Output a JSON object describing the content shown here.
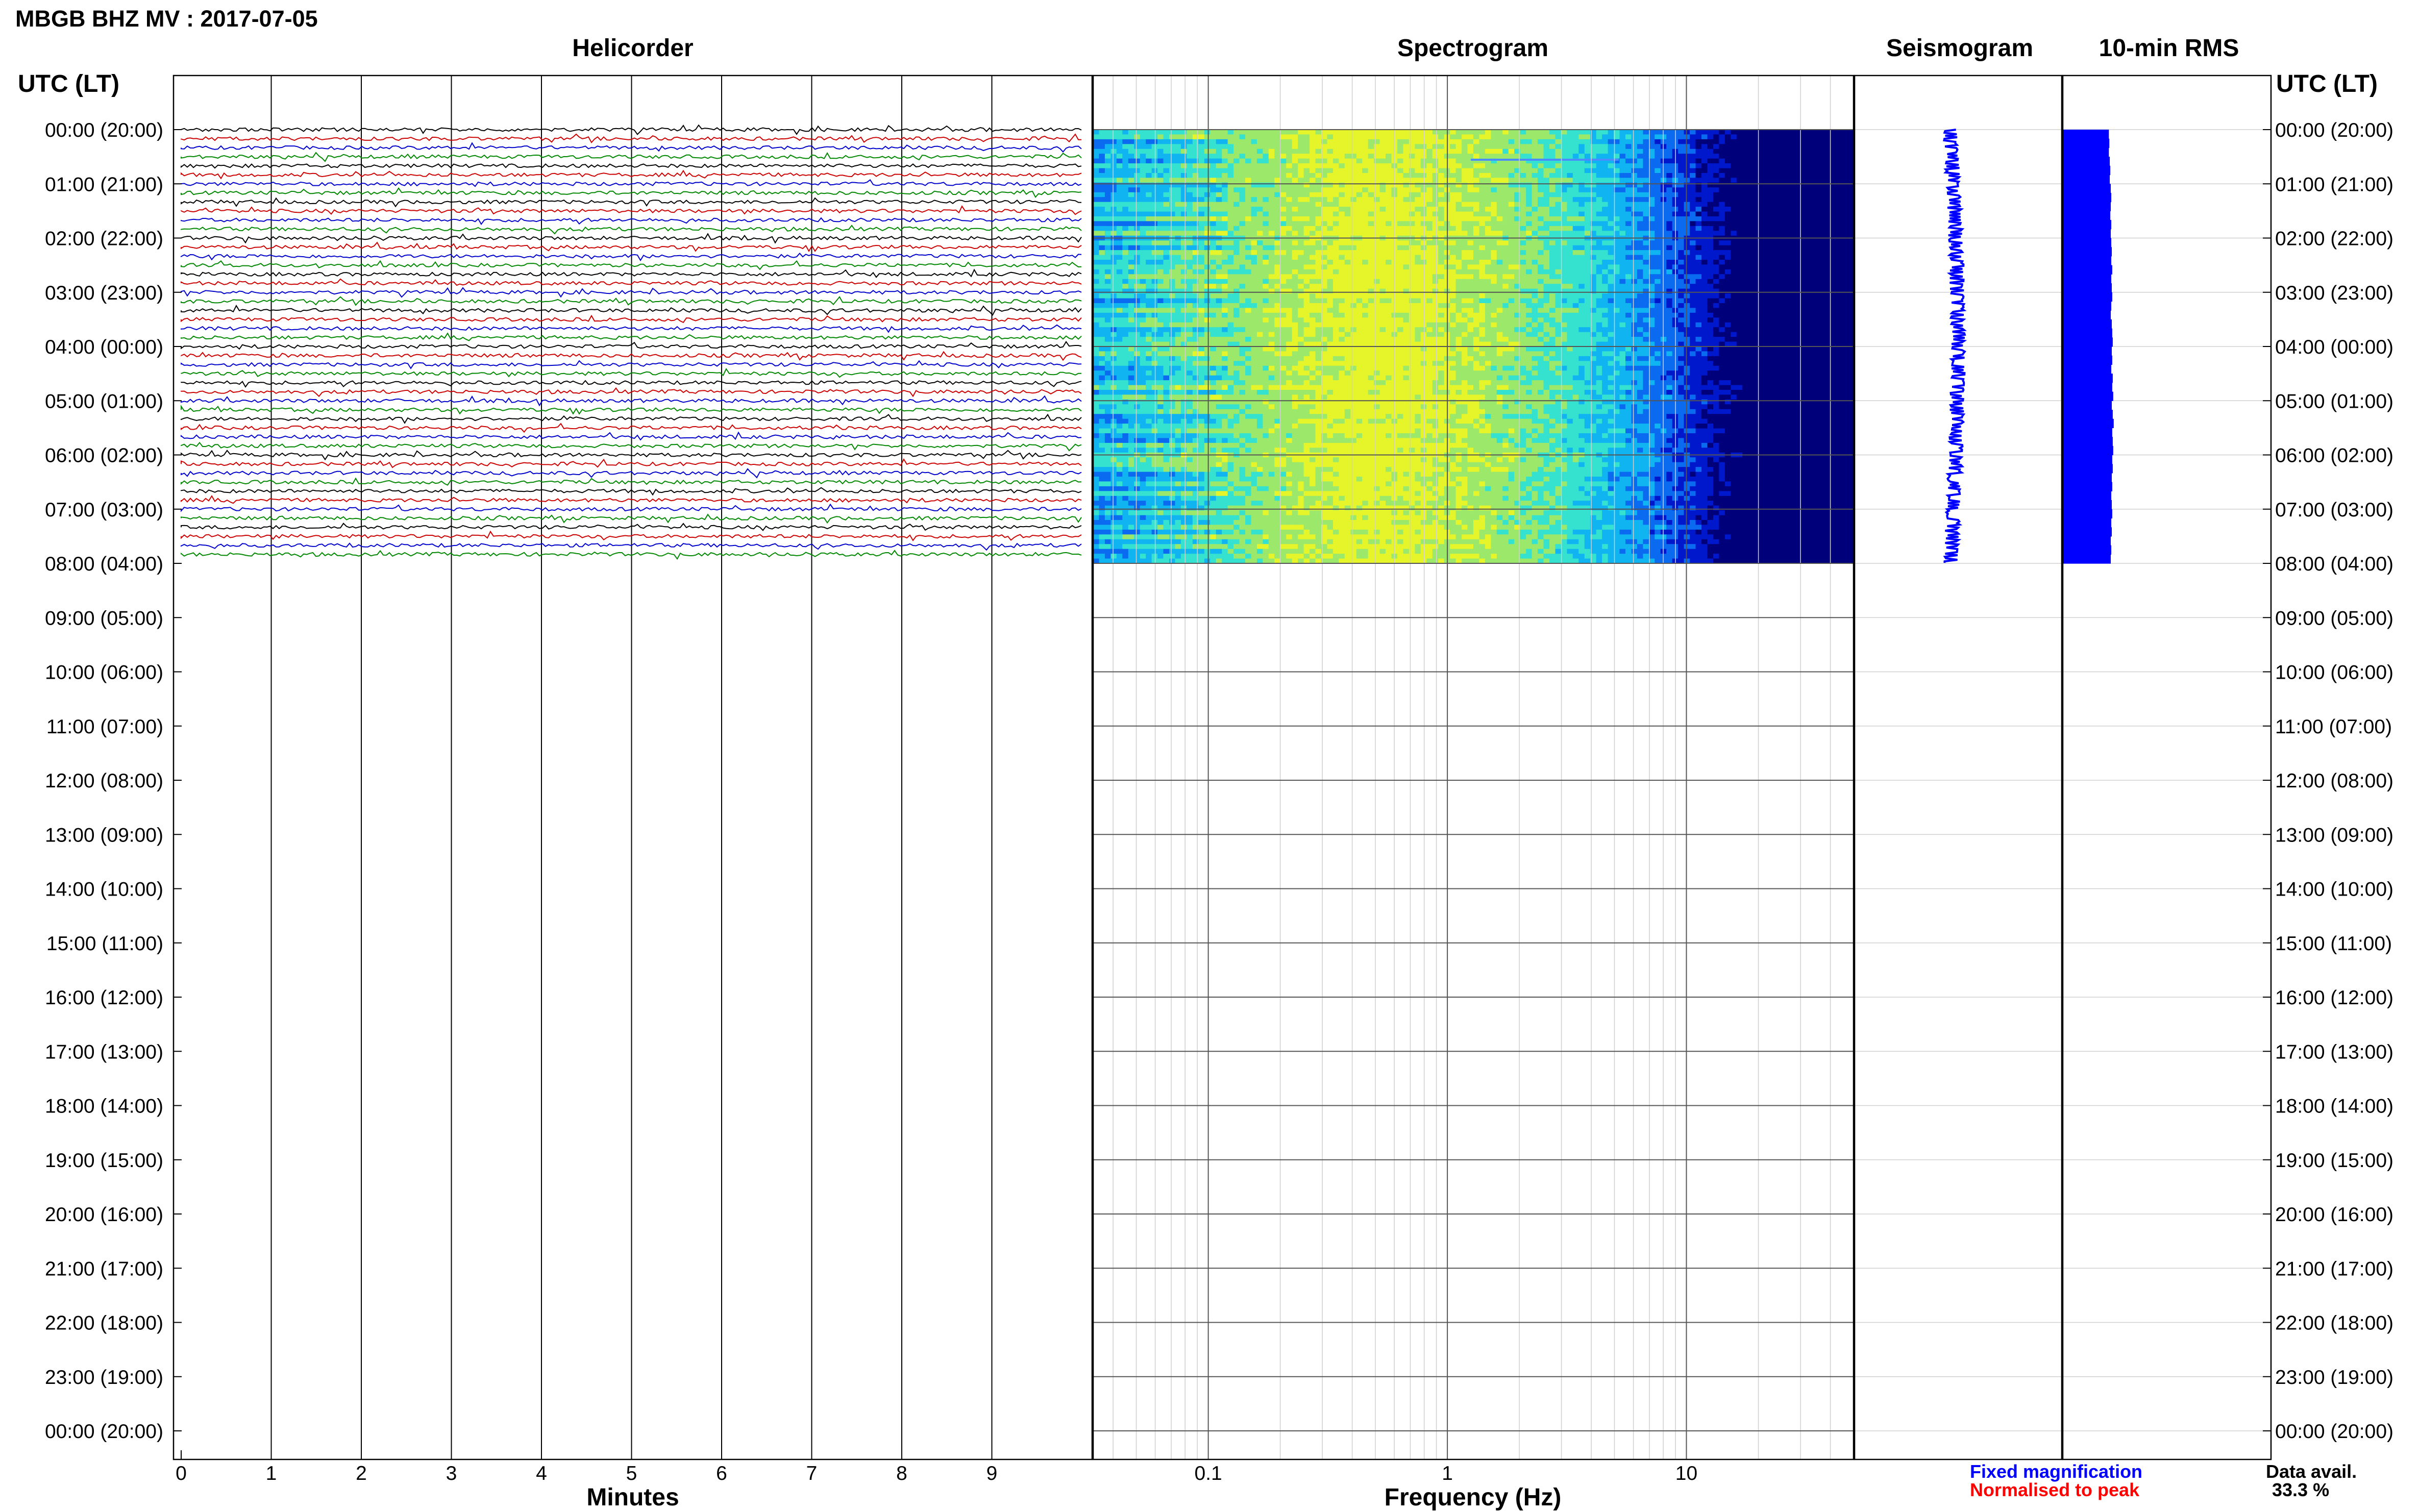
{
  "title": "MBGB BHZ MV : 2017-07-05",
  "utc_label": "UTC (LT)",
  "panels": {
    "helicorder": "Helicorder",
    "spectrogram": "Spectrogram",
    "seismogram": "Seismogram",
    "rms": "10-min RMS"
  },
  "x_axis": {
    "helicorder_label": "Minutes",
    "spectrogram_label": "Frequency (Hz)"
  },
  "legend": {
    "fixed": "Fixed magnification",
    "normalised": "Normalised to peak",
    "fixed_color": "#0000ff",
    "normalised_color": "#ff0000"
  },
  "availability": {
    "label": "Data avail.",
    "value": "33.3 %"
  },
  "chart_data": {
    "type": "heatmap",
    "title": "MBGB BHZ MV : 2017-07-05",
    "time_labels": [
      "00:00 (20:00)",
      "01:00 (21:00)",
      "02:00 (22:00)",
      "03:00 (23:00)",
      "04:00 (00:00)",
      "05:00 (01:00)",
      "06:00 (02:00)",
      "07:00 (03:00)",
      "08:00 (04:00)",
      "09:00 (05:00)",
      "10:00 (06:00)",
      "11:00 (07:00)",
      "12:00 (08:00)",
      "13:00 (09:00)",
      "14:00 (10:00)",
      "15:00 (11:00)",
      "16:00 (12:00)",
      "17:00 (13:00)",
      "18:00 (14:00)",
      "19:00 (15:00)",
      "20:00 (16:00)",
      "21:00 (17:00)",
      "22:00 (18:00)",
      "23:00 (19:00)",
      "00:00 (20:00)"
    ],
    "data_end_hour": 8,
    "helicorder": {
      "xlabel": "Minutes",
      "xlim": [
        0,
        10
      ],
      "ticks": [
        "0",
        "1",
        "2",
        "3",
        "4",
        "5",
        "6",
        "7",
        "8",
        "9"
      ],
      "trace_colors": [
        "#000000",
        "#cc0000",
        "#0000cc",
        "#008800"
      ]
    },
    "spectrogram": {
      "xlabel": "Frequency (Hz)",
      "xscale": "log",
      "xlim": [
        0.033,
        50
      ],
      "ticks": [
        {
          "value": 0.1,
          "label": "0.1"
        },
        {
          "value": 1,
          "label": "1"
        },
        {
          "value": 10,
          "label": "10"
        }
      ],
      "peak_frequency_hz": 0.4,
      "spectral_line_hz": 4.5,
      "colormap": [
        "#00007a",
        "#0018cc",
        "#0a6af0",
        "#10b4f0",
        "#35e2cf",
        "#9be86a",
        "#e6f52a"
      ]
    },
    "seismogram": {
      "color": "#0000ff"
    },
    "rms_10min": {
      "color": "#0000ff",
      "values": [
        0.95,
        0.96,
        0.95,
        0.97,
        0.98,
        0.97,
        0.99,
        1.0,
        0.99,
        0.98,
        1.0,
        0.99,
        1.0,
        1.01,
        1.0,
        1.02,
        1.0,
        1.01,
        1.02,
        1.0,
        0.99,
        1.01,
        1.02,
        1.03,
        1.01,
        1.02,
        1.0,
        1.03,
        1.02,
        1.04,
        1.01,
        1.03,
        1.05,
        1.02,
        1.03,
        1.04,
        1.02,
        1.03,
        1.01,
        1.02,
        1.0,
        1.01,
        1.02,
        1.0,
        1.01,
        0.99,
        1.0,
        0.99
      ]
    }
  }
}
